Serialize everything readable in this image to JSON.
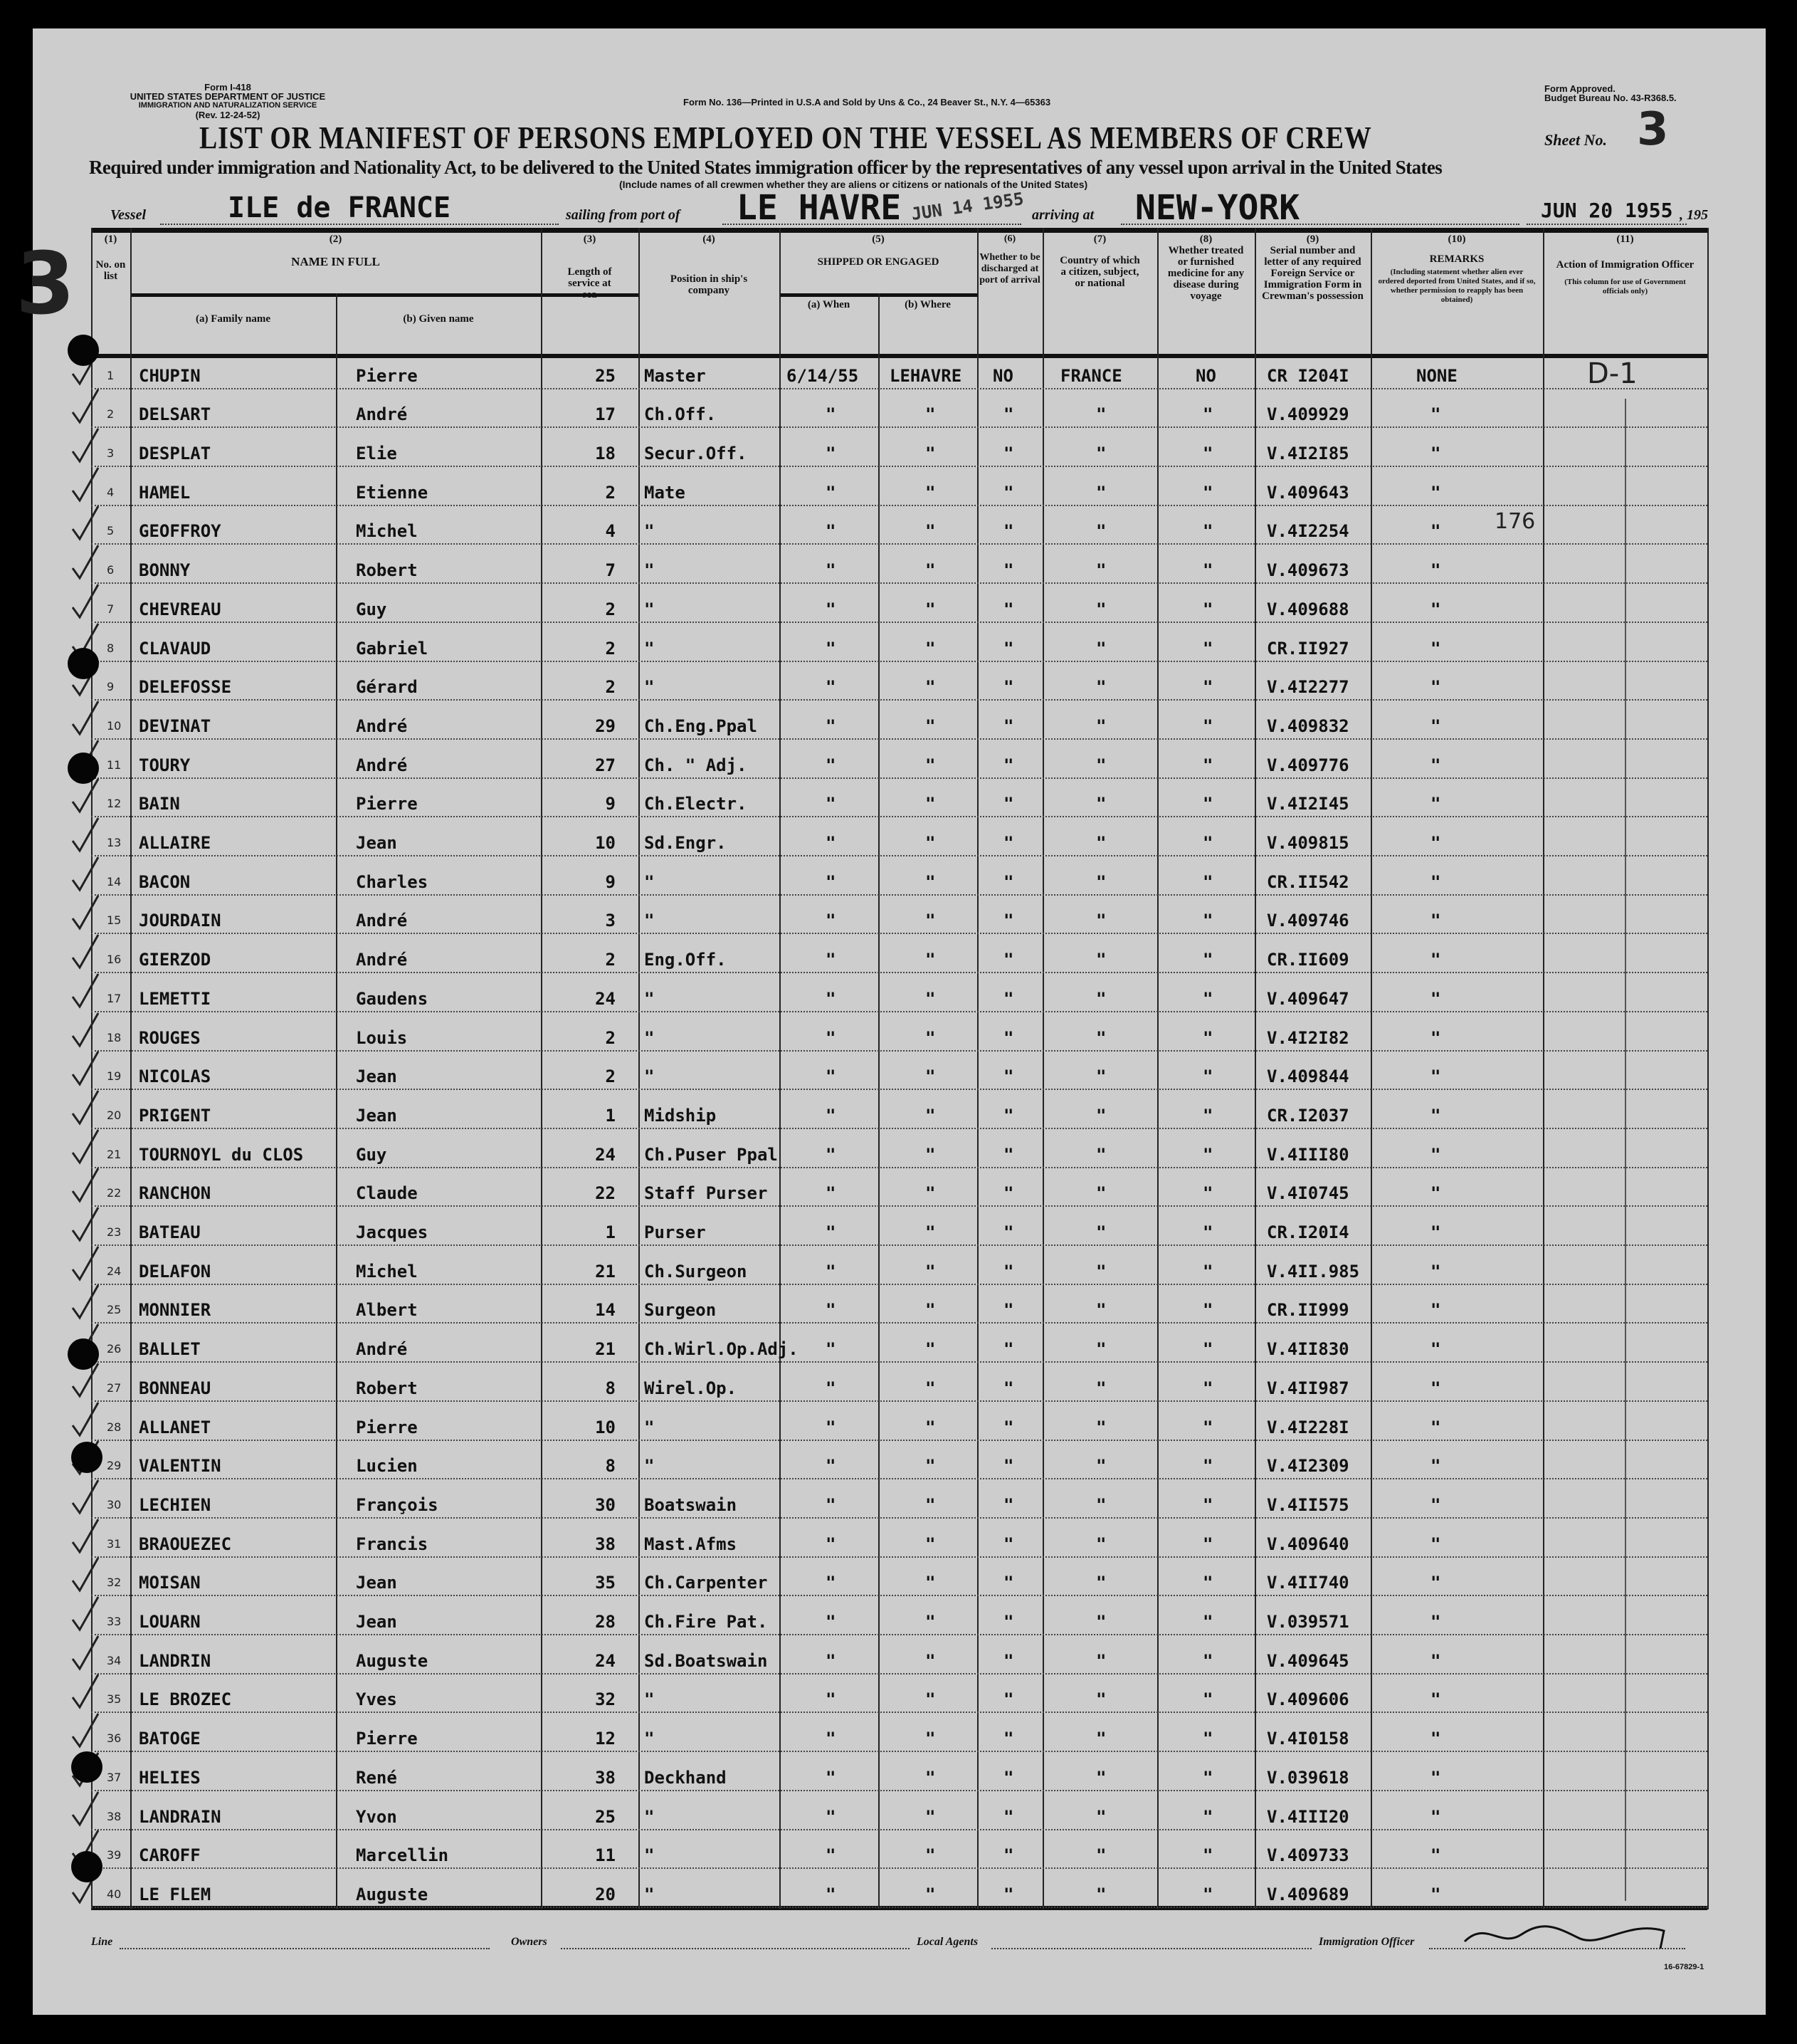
{
  "form": {
    "form_number": "Form I-418",
    "department": "UNITED STATES DEPARTMENT OF JUSTICE",
    "service": "IMMIGRATION AND NATURALIZATION SERVICE",
    "revision": "(Rev. 12-24-52)",
    "printer": "Form No. 136—Printed in U.S.A and Sold by Uns & Co., 24 Beaver St., N.Y. 4—65363",
    "approval": "Form Approved.",
    "budget": "Budget Bureau No. 43-R368.5.",
    "title": "LIST OR MANIFEST OF PERSONS EMPLOYED ON THE VESSEL AS MEMBERS OF CREW",
    "sheet_label": "Sheet No.",
    "sheet_no": "3",
    "subtitle": "Required under immigration and Nationality Act, to be delivered to the United States immigration officer by the representatives of any vessel upon arrival in the United States",
    "note": "(Include names of all crewmen whether they are aliens or citizens or nationals of the United States)",
    "vessel_label": "Vessel",
    "vessel": "ILE de FRANCE",
    "sailing_label": "sailing from port of",
    "port": "LE HAVRE",
    "sailing_stamp": "JUN 14 1955",
    "arriving_label": "arriving at",
    "arrival_port": "NEW-YORK",
    "arrival_date": "JUN 20 1955",
    "year_suffix": ", 195",
    "margin_mark": "3"
  },
  "columns": {
    "c1_num": "(1)",
    "c1": "No. on list",
    "c2_num": "(2)",
    "c2": "NAME IN FULL",
    "c2a": "(a) Family name",
    "c2b": "(b) Given name",
    "c3_num": "(3)",
    "c3": "Length of service at sea",
    "c4_num": "(4)",
    "c4": "Position in ship's company",
    "c5_num": "(5)",
    "c5": "SHIPPED OR ENGAGED",
    "c5a": "(a) When",
    "c5b": "(b) Where",
    "c6_num": "(6)",
    "c6": "Whether to be discharged at port of arrival",
    "c7_num": "(7)",
    "c7": "Country of which a citizen, subject, or national",
    "c8_num": "(8)",
    "c8": "Whether treated or furnished medicine for any disease during voyage",
    "c9_num": "(9)",
    "c9": "Serial number and letter of any required Foreign Service or Immigration Form in Crewman's possession",
    "c10_num": "(10)",
    "c10": "REMARKS",
    "c10_note": "(Including statement whether alien ever ordered deported from United States, and if so, whether permission to reapply has been obtained)",
    "c11_num": "(11)",
    "c11": "Action of Immigration Officer",
    "c11_note": "(This column for use of Government officials only)"
  },
  "rows": [
    {
      "no": "1",
      "family": "CHUPIN",
      "given": "Pierre",
      "length": "25",
      "position": "Master",
      "when": "6/14/55",
      "where": "LEHAVRE",
      "discharged": "NO",
      "country": "FRANCE",
      "medicine": "NO",
      "serial": "CR I204I",
      "remarks": "NONE"
    },
    {
      "no": "2",
      "family": "DELSART",
      "given": "André",
      "length": "17",
      "position": "Ch.Off.",
      "when": "\"",
      "where": "\"",
      "discharged": "\"",
      "country": "\"",
      "medicine": "\"",
      "serial": "V.409929",
      "remarks": "\""
    },
    {
      "no": "3",
      "family": "DESPLAT",
      "given": "Elie",
      "length": "18",
      "position": "Secur.Off.",
      "when": "\"",
      "where": "\"",
      "discharged": "\"",
      "country": "\"",
      "medicine": "\"",
      "serial": "V.4I2I85",
      "remarks": "\""
    },
    {
      "no": "4",
      "family": "HAMEL",
      "given": "Etienne",
      "length": "2",
      "position": "Mate",
      "when": "\"",
      "where": "\"",
      "discharged": "\"",
      "country": "\"",
      "medicine": "\"",
      "serial": "V.409643",
      "remarks": "\""
    },
    {
      "no": "5",
      "family": "GEOFFROY",
      "given": "Michel",
      "length": "4",
      "position": "\"",
      "when": "\"",
      "where": "\"",
      "discharged": "\"",
      "country": "\"",
      "medicine": "\"",
      "serial": "V.4I2254",
      "remarks": "\""
    },
    {
      "no": "6",
      "family": "BONNY",
      "given": "Robert",
      "length": "7",
      "position": "\"",
      "when": "\"",
      "where": "\"",
      "discharged": "\"",
      "country": "\"",
      "medicine": "\"",
      "serial": "V.409673",
      "remarks": "\""
    },
    {
      "no": "7",
      "family": "CHEVREAU",
      "given": "Guy",
      "length": "2",
      "position": "\"",
      "when": "\"",
      "where": "\"",
      "discharged": "\"",
      "country": "\"",
      "medicine": "\"",
      "serial": "V.409688",
      "remarks": "\""
    },
    {
      "no": "8",
      "family": "CLAVAUD",
      "given": "Gabriel",
      "length": "2",
      "position": "\"",
      "when": "\"",
      "where": "\"",
      "discharged": "\"",
      "country": "\"",
      "medicine": "\"",
      "serial": "CR.II927",
      "remarks": "\""
    },
    {
      "no": "9",
      "family": "DELEFOSSE",
      "given": "Gérard",
      "length": "2",
      "position": "\"",
      "when": "\"",
      "where": "\"",
      "discharged": "\"",
      "country": "\"",
      "medicine": "\"",
      "serial": "V.4I2277",
      "remarks": "\""
    },
    {
      "no": "10",
      "family": "DEVINAT",
      "given": "André",
      "length": "29",
      "position": "Ch.Eng.Ppal",
      "when": "\"",
      "where": "\"",
      "discharged": "\"",
      "country": "\"",
      "medicine": "\"",
      "serial": "V.409832",
      "remarks": "\""
    },
    {
      "no": "11",
      "family": "TOURY",
      "given": "André",
      "length": "27",
      "position": "Ch. \" Adj.",
      "when": "\"",
      "where": "\"",
      "discharged": "\"",
      "country": "\"",
      "medicine": "\"",
      "serial": "V.409776",
      "remarks": "\""
    },
    {
      "no": "12",
      "family": "BAIN",
      "given": "Pierre",
      "length": "9",
      "position": "Ch.Electr.",
      "when": "\"",
      "where": "\"",
      "discharged": "\"",
      "country": "\"",
      "medicine": "\"",
      "serial": "V.4I2I45",
      "remarks": "\""
    },
    {
      "no": "13",
      "family": "ALLAIRE",
      "given": "Jean",
      "length": "10",
      "position": "Sd.Engr.",
      "when": "\"",
      "where": "\"",
      "discharged": "\"",
      "country": "\"",
      "medicine": "\"",
      "serial": "V.409815",
      "remarks": "\""
    },
    {
      "no": "14",
      "family": "BACON",
      "given": "Charles",
      "length": "9",
      "position": "\"",
      "when": "\"",
      "where": "\"",
      "discharged": "\"",
      "country": "\"",
      "medicine": "\"",
      "serial": "CR.II542",
      "remarks": "\""
    },
    {
      "no": "15",
      "family": "JOURDAIN",
      "given": "André",
      "length": "3",
      "position": "\"",
      "when": "\"",
      "where": "\"",
      "discharged": "\"",
      "country": "\"",
      "medicine": "\"",
      "serial": "V.409746",
      "remarks": "\""
    },
    {
      "no": "16",
      "family": "GIERZOD",
      "given": "André",
      "length": "2",
      "position": "Eng.Off.",
      "when": "\"",
      "where": "\"",
      "discharged": "\"",
      "country": "\"",
      "medicine": "\"",
      "serial": "CR.II609",
      "remarks": "\""
    },
    {
      "no": "17",
      "family": "LEMETTI",
      "given": "Gaudens",
      "length": "24",
      "position": "\"",
      "when": "\"",
      "where": "\"",
      "discharged": "\"",
      "country": "\"",
      "medicine": "\"",
      "serial": "V.409647",
      "remarks": "\""
    },
    {
      "no": "18",
      "family": "ROUGES",
      "given": "Louis",
      "length": "2",
      "position": "\"",
      "when": "\"",
      "where": "\"",
      "discharged": "\"",
      "country": "\"",
      "medicine": "\"",
      "serial": "V.4I2I82",
      "remarks": "\""
    },
    {
      "no": "19",
      "family": "NICOLAS",
      "given": "Jean",
      "length": "2",
      "position": "\"",
      "when": "\"",
      "where": "\"",
      "discharged": "\"",
      "country": "\"",
      "medicine": "\"",
      "serial": "V.409844",
      "remarks": "\""
    },
    {
      "no": "20",
      "family": "PRIGENT",
      "given": "Jean",
      "length": "1",
      "position": "Midship",
      "when": "\"",
      "where": "\"",
      "discharged": "\"",
      "country": "\"",
      "medicine": "\"",
      "serial": "CR.I2037",
      "remarks": "\""
    },
    {
      "no": "21",
      "family": "TOURNOYL du CLOS",
      "given": "Guy",
      "length": "24",
      "position": "Ch.Puser Ppal",
      "when": "\"",
      "where": "\"",
      "discharged": "\"",
      "country": "\"",
      "medicine": "\"",
      "serial": "V.4III80",
      "remarks": "\""
    },
    {
      "no": "22",
      "family": "RANCHON",
      "given": "Claude",
      "length": "22",
      "position": "Staff Purser",
      "when": "\"",
      "where": "\"",
      "discharged": "\"",
      "country": "\"",
      "medicine": "\"",
      "serial": "V.4I0745",
      "remarks": "\""
    },
    {
      "no": "23",
      "family": "BATEAU",
      "given": "Jacques",
      "length": "1",
      "position": "Purser",
      "when": "\"",
      "where": "\"",
      "discharged": "\"",
      "country": "\"",
      "medicine": "\"",
      "serial": "CR.I20I4",
      "remarks": "\""
    },
    {
      "no": "24",
      "family": "DELAFON",
      "given": "Michel",
      "length": "21",
      "position": "Ch.Surgeon",
      "when": "\"",
      "where": "\"",
      "discharged": "\"",
      "country": "\"",
      "medicine": "\"",
      "serial": "V.4II.985",
      "remarks": "\""
    },
    {
      "no": "25",
      "family": "MONNIER",
      "given": "Albert",
      "length": "14",
      "position": "Surgeon",
      "when": "\"",
      "where": "\"",
      "discharged": "\"",
      "country": "\"",
      "medicine": "\"",
      "serial": "CR.II999",
      "remarks": "\""
    },
    {
      "no": "26",
      "family": "BALLET",
      "given": "André",
      "length": "21",
      "position": "Ch.Wirl.Op.Adj.",
      "when": "\"",
      "where": "\"",
      "discharged": "\"",
      "country": "\"",
      "medicine": "\"",
      "serial": "V.4II830",
      "remarks": "\""
    },
    {
      "no": "27",
      "family": "BONNEAU",
      "given": "Robert",
      "length": "8",
      "position": "Wirel.Op.",
      "when": "\"",
      "where": "\"",
      "discharged": "\"",
      "country": "\"",
      "medicine": "\"",
      "serial": "V.4II987",
      "remarks": "\""
    },
    {
      "no": "28",
      "family": "ALLANET",
      "given": "Pierre",
      "length": "10",
      "position": "\"",
      "when": "\"",
      "where": "\"",
      "discharged": "\"",
      "country": "\"",
      "medicine": "\"",
      "serial": "V.4I228I",
      "remarks": "\""
    },
    {
      "no": "29",
      "family": "VALENTIN",
      "given": "Lucien",
      "length": "8",
      "position": "\"",
      "when": "\"",
      "where": "\"",
      "discharged": "\"",
      "country": "\"",
      "medicine": "\"",
      "serial": "V.4I2309",
      "remarks": "\""
    },
    {
      "no": "30",
      "family": "LECHIEN",
      "given": "François",
      "length": "30",
      "position": "Boatswain",
      "when": "\"",
      "where": "\"",
      "discharged": "\"",
      "country": "\"",
      "medicine": "\"",
      "serial": "V.4II575",
      "remarks": "\""
    },
    {
      "no": "31",
      "family": "BRAOUEZEC",
      "given": "Francis",
      "length": "38",
      "position": "Mast.Afms",
      "when": "\"",
      "where": "\"",
      "discharged": "\"",
      "country": "\"",
      "medicine": "\"",
      "serial": "V.409640",
      "remarks": "\""
    },
    {
      "no": "32",
      "family": "MOISAN",
      "given": "Jean",
      "length": "35",
      "position": "Ch.Carpenter",
      "when": "\"",
      "where": "\"",
      "discharged": "\"",
      "country": "\"",
      "medicine": "\"",
      "serial": "V.4II740",
      "remarks": "\""
    },
    {
      "no": "33",
      "family": "LOUARN",
      "given": "Jean",
      "length": "28",
      "position": "Ch.Fire Pat.",
      "when": "\"",
      "where": "\"",
      "discharged": "\"",
      "country": "\"",
      "medicine": "\"",
      "serial": "V.039571",
      "remarks": "\""
    },
    {
      "no": "34",
      "family": "LANDRIN",
      "given": "Auguste",
      "length": "24",
      "position": "Sd.Boatswain",
      "when": "\"",
      "where": "\"",
      "discharged": "\"",
      "country": "\"",
      "medicine": "\"",
      "serial": "V.409645",
      "remarks": "\""
    },
    {
      "no": "35",
      "family": "LE BROZEC",
      "given": "Yves",
      "length": "32",
      "position": "\"",
      "when": "\"",
      "where": "\"",
      "discharged": "\"",
      "country": "\"",
      "medicine": "\"",
      "serial": "V.409606",
      "remarks": "\""
    },
    {
      "no": "36",
      "family": "BATOGE",
      "given": "Pierre",
      "length": "12",
      "position": "\"",
      "when": "\"",
      "where": "\"",
      "discharged": "\"",
      "country": "\"",
      "medicine": "\"",
      "serial": "V.4I0158",
      "remarks": "\""
    },
    {
      "no": "37",
      "family": "HELIES",
      "given": "René",
      "length": "38",
      "position": "Deckhand",
      "when": "\"",
      "where": "\"",
      "discharged": "\"",
      "country": "\"",
      "medicine": "\"",
      "serial": "V.039618",
      "remarks": "\""
    },
    {
      "no": "38",
      "family": "LANDRAIN",
      "given": "Yvon",
      "length": "25",
      "position": "\"",
      "when": "\"",
      "where": "\"",
      "discharged": "\"",
      "country": "\"",
      "medicine": "\"",
      "serial": "V.4III20",
      "remarks": "\""
    },
    {
      "no": "39",
      "family": "CAROFF",
      "given": "Marcellin",
      "length": "11",
      "position": "\"",
      "when": "\"",
      "where": "\"",
      "discharged": "\"",
      "country": "\"",
      "medicine": "\"",
      "serial": "V.409733",
      "remarks": "\""
    },
    {
      "no": "40",
      "family": "LE FLEM",
      "given": "Auguste",
      "length": "20",
      "position": "\"",
      "when": "\"",
      "where": "\"",
      "discharged": "\"",
      "country": "\"",
      "medicine": "\"",
      "serial": "V.409689",
      "remarks": "\""
    }
  ],
  "annotations": {
    "officer_action": "D-1",
    "count_note": "176"
  },
  "footer": {
    "line": "Line",
    "owners": "Owners",
    "agents": "Local Agents",
    "officer": "Immigration Officer",
    "code": "16-67829-1"
  }
}
